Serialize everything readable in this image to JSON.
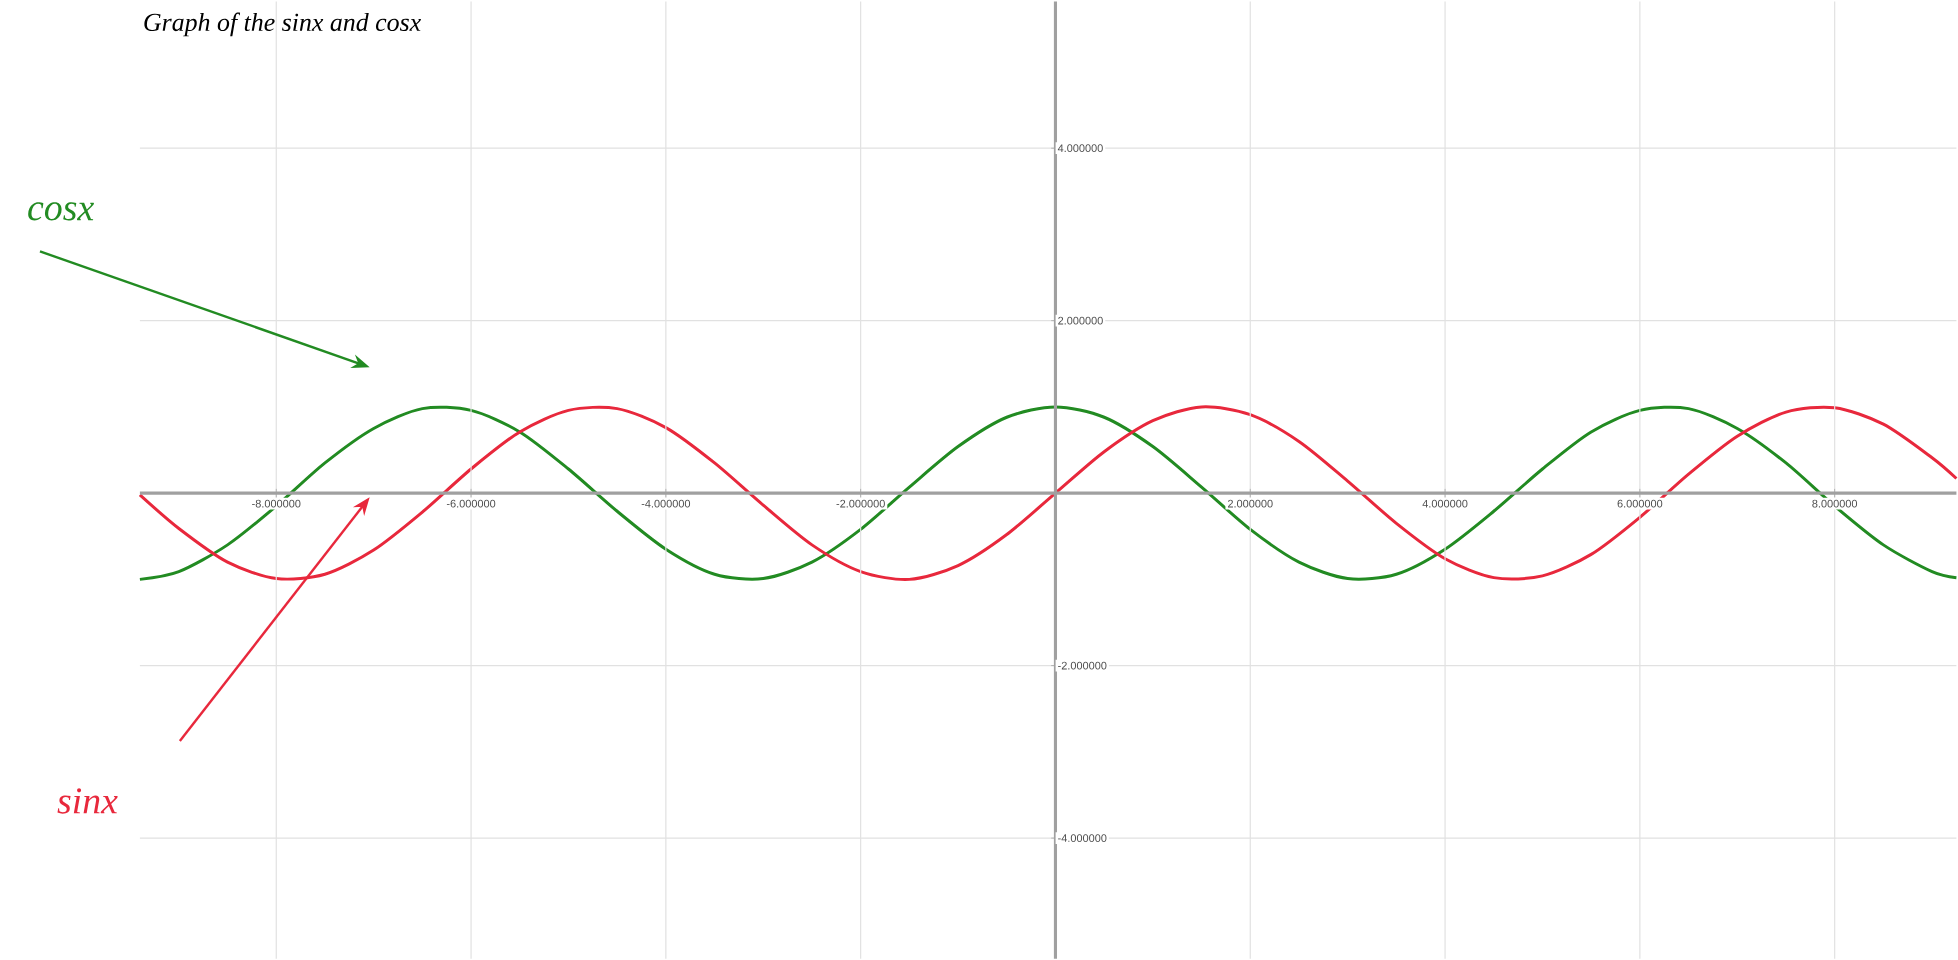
{
  "chart_data": {
    "type": "line",
    "title": "Graph of the sinx and cosx",
    "x": [
      -9.4,
      -9,
      -8.5,
      -8,
      -7.5,
      -7,
      -6.5,
      -6,
      -5.5,
      -5,
      -4.5,
      -4,
      -3.5,
      -3,
      -2.5,
      -2,
      -1.5,
      -1,
      -0.5,
      0,
      0.5,
      1,
      1.5,
      2,
      2.5,
      3,
      3.5,
      4,
      4.5,
      5,
      5.5,
      6,
      6.5,
      7,
      7.5,
      8,
      8.5,
      9,
      9.25
    ],
    "series": [
      {
        "name": "cosx",
        "color": "#228b22",
        "values": [
          -1.0,
          -0.91,
          -0.6,
          -0.15,
          0.35,
          0.75,
          0.98,
          0.96,
          0.71,
          0.28,
          -0.21,
          -0.65,
          -0.94,
          -0.99,
          -0.8,
          -0.42,
          0.07,
          0.54,
          0.88,
          1.0,
          0.88,
          0.54,
          0.07,
          -0.42,
          -0.8,
          -0.99,
          -0.94,
          -0.65,
          -0.21,
          0.28,
          0.71,
          0.96,
          0.98,
          0.75,
          0.35,
          -0.15,
          -0.6,
          -0.91,
          -0.98
        ]
      },
      {
        "name": "sinx",
        "color": "#e8283c",
        "values": [
          -0.02,
          -0.41,
          -0.8,
          -0.99,
          -0.94,
          -0.66,
          -0.22,
          0.28,
          0.71,
          0.96,
          0.98,
          0.76,
          0.35,
          -0.14,
          -0.6,
          -0.91,
          -1.0,
          -0.84,
          -0.48,
          0.0,
          0.48,
          0.84,
          1.0,
          0.91,
          0.6,
          0.14,
          -0.35,
          -0.76,
          -0.98,
          -0.96,
          -0.71,
          -0.28,
          0.22,
          0.66,
          0.94,
          0.99,
          0.8,
          0.41,
          0.17
        ]
      }
    ],
    "xlim": [
      -9.4,
      9.25
    ],
    "ylim": [
      -5.4,
      5.7
    ],
    "xticks": [
      {
        "value": -8,
        "label": "-8.000000"
      },
      {
        "value": -6,
        "label": "-6.000000"
      },
      {
        "value": -4,
        "label": "-4.000000"
      },
      {
        "value": -2,
        "label": "-2.000000"
      },
      {
        "value": 2,
        "label": "2.000000"
      },
      {
        "value": 4,
        "label": "4.000000"
      },
      {
        "value": 6,
        "label": "6.000000"
      },
      {
        "value": 8,
        "label": "8.000000"
      }
    ],
    "yticks": [
      {
        "value": -4,
        "label": "-4.000000"
      },
      {
        "value": -2,
        "label": "-2.000000"
      },
      {
        "value": 2,
        "label": "2.000000"
      },
      {
        "value": 4,
        "label": "4.000000"
      }
    ],
    "grid": true,
    "legend": false,
    "marker": "none",
    "line_style": "solid"
  }
}
